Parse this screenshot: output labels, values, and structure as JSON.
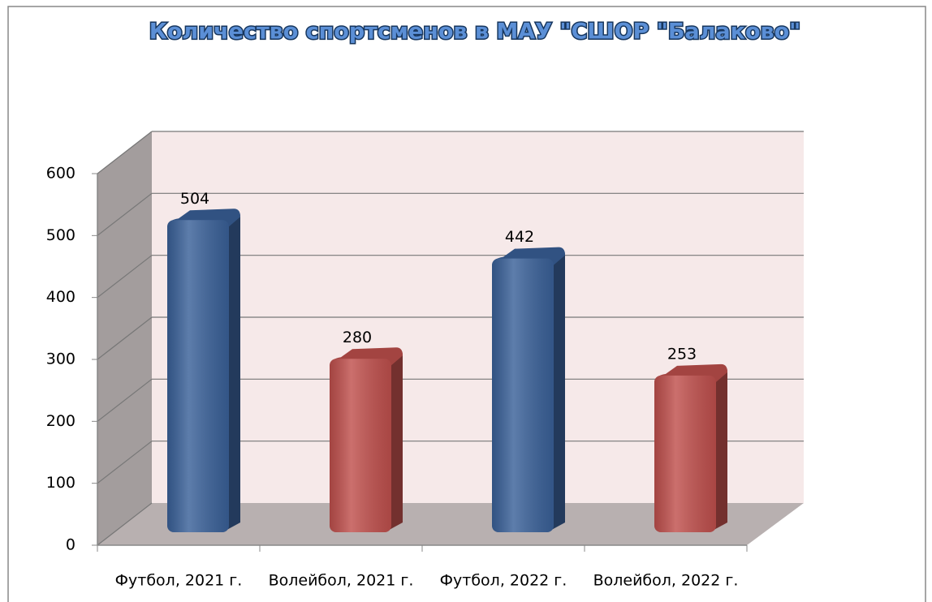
{
  "chart_data": {
    "type": "bar3d",
    "title": "Количество спортсменов в МАУ \"СШОР \"Балаково\"",
    "categories": [
      "Футбол, 2021 г.",
      "Волейбол, 2021 г.",
      "Футбол, 2022 г.",
      "Волейбол, 2022 г."
    ],
    "values": [
      504,
      280,
      442,
      253
    ],
    "colors": [
      "#3a6199",
      "#c0504d",
      "#3a6199",
      "#c0504d"
    ],
    "ylim": [
      0,
      600
    ],
    "yticks": [
      0,
      100,
      200,
      300,
      400,
      500,
      600
    ],
    "grid": true
  }
}
